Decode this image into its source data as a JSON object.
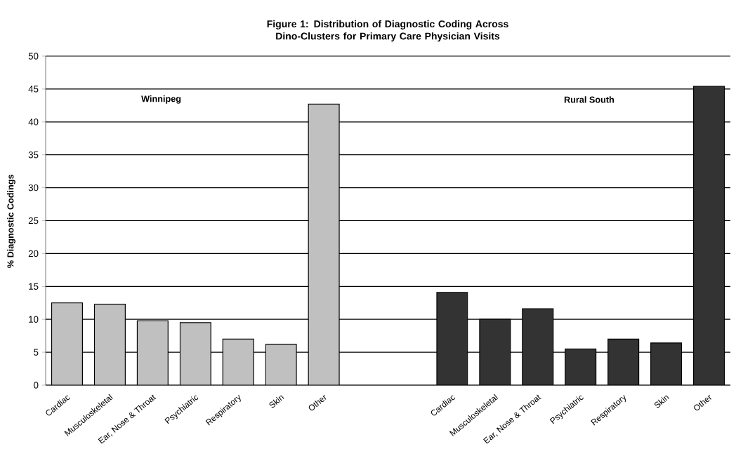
{
  "chart_data": {
    "type": "bar",
    "title": "Figure 1: Distribution of Diagnostic Coding Across Dino-Clusters for Primary Care Physician Visits",
    "ylabel": "% Diagnostic Codings",
    "categories": [
      "Cardiac",
      "Musculoskeletal",
      "Ear, Nose & Throat",
      "Psychiatric",
      "Respiratory",
      "Skin",
      "Other",
      null,
      null,
      "Cardiac",
      "Musculoskeletal",
      "Ear, Nose & Throat",
      "Psychiatric",
      "Respiratory",
      "Skin",
      "Other"
    ],
    "values": [
      12.5,
      12.3,
      9.8,
      9.5,
      7.0,
      6.2,
      42.7,
      null,
      null,
      14.1,
      10.0,
      11.6,
      5.5,
      7.0,
      6.4,
      45.4
    ],
    "colors": [
      "#c0c0c0",
      "#c0c0c0",
      "#c0c0c0",
      "#c0c0c0",
      "#c0c0c0",
      "#c0c0c0",
      "#c0c0c0",
      "#c0c0c0",
      "#c0c0c0",
      "#333333",
      "#333333",
      "#333333",
      "#333333",
      "#333333",
      "#333333",
      "#333333"
    ],
    "annotations": [
      "Winnipeg",
      "Rural South"
    ],
    "ylim": [
      0,
      50
    ],
    "yticks": [
      0,
      5,
      10,
      15,
      20,
      25,
      30,
      35,
      40,
      45,
      50
    ],
    "grid": "y"
  }
}
